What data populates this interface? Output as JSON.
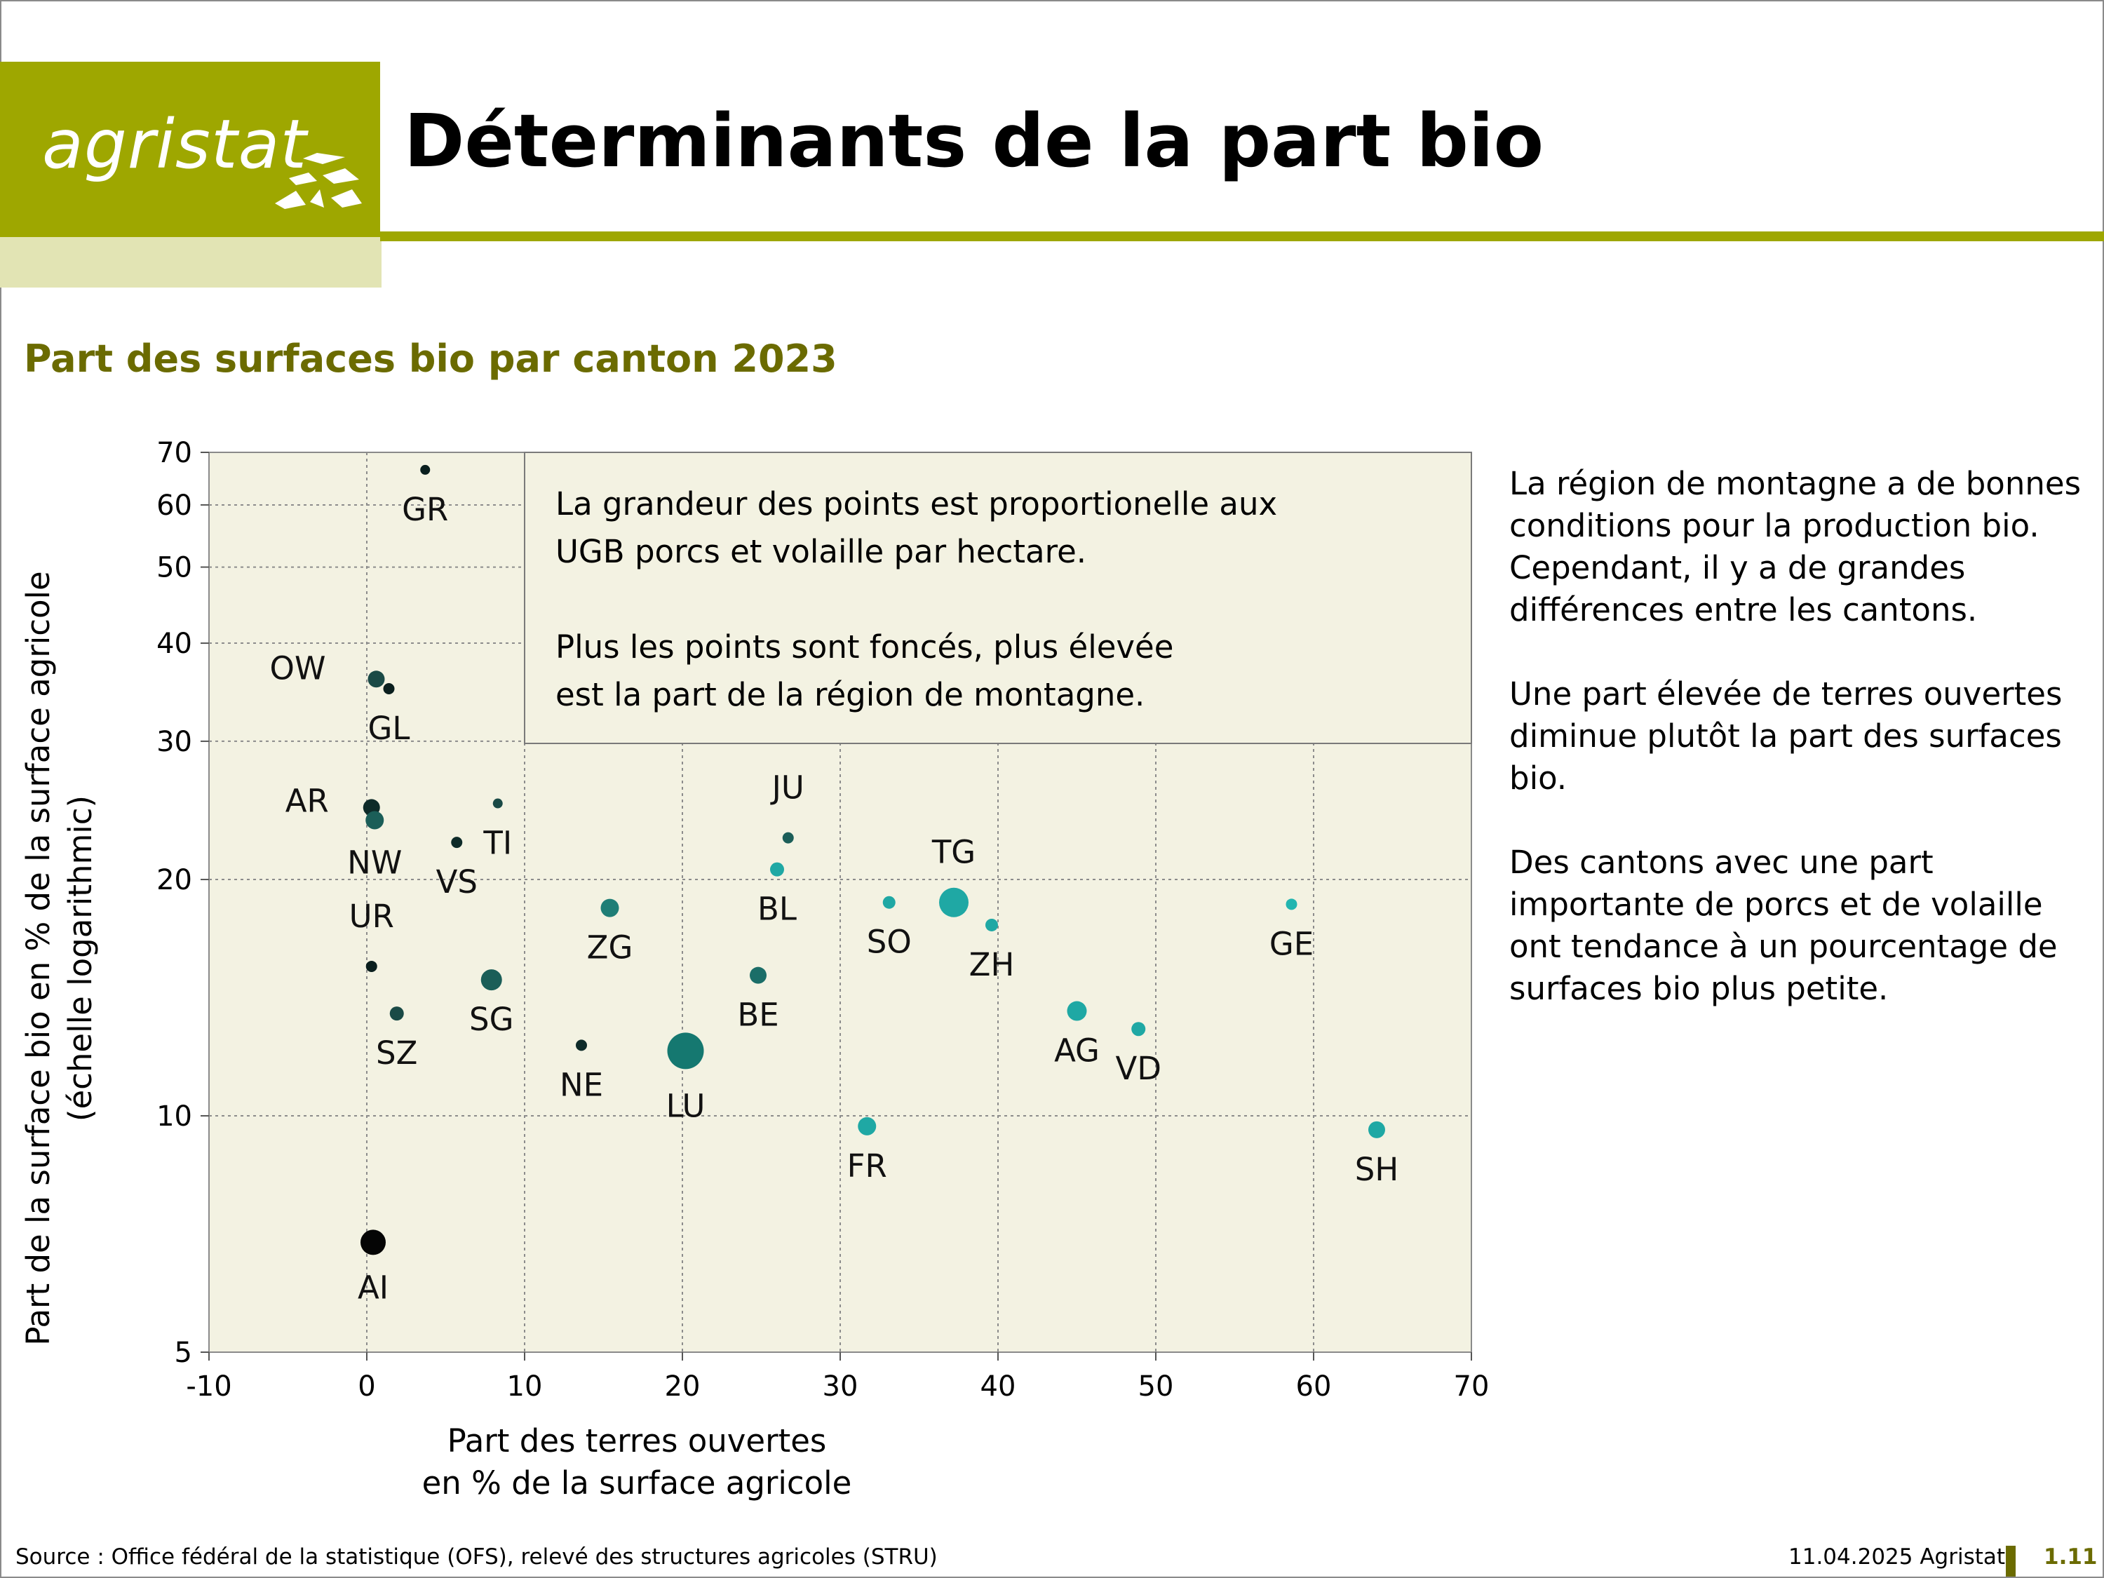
{
  "header": {
    "logo_text": "agristat",
    "title": "Déterminants de la part bio"
  },
  "chart_title": "Part des surfaces bio par canton 2023",
  "colors": {
    "brand": "#9ea700",
    "brand_light": "#e2e4b4",
    "plot_bg": "#f3f2e2",
    "subtitle": "#6b6b00"
  },
  "legend_note": {
    "lines": [
      "La grandeur des points est proportionelle aux",
      "UGB porcs et volaille par hectare.",
      "",
      "Plus les points sont foncés, plus élevée",
      "est la part de la région de montagne."
    ]
  },
  "side_text": {
    "p1": "La région de montagne a de bonnes conditions pour la production bio. Cependant, il y a de grandes différences entre les cantons.",
    "p2": "Une part élevée de terres ouvertes diminue plutôt la part des surfaces bio.",
    "p3": "Des cantons avec une part importante de porcs et de volaille ont tendance à un pourcentage de surfaces bio plus petite."
  },
  "footer": {
    "source": "Source : Office fédéral de la statistique (OFS), relevé des structures agricoles (STRU)",
    "date": "11.04.2025 Agristat",
    "page": "1.11"
  },
  "chart_data": {
    "type": "scatter",
    "xlabel": [
      "Part des terres ouvertes",
      "en % de la surface agricole"
    ],
    "ylabel": [
      "Part de la surface bio en % de la surface agricole",
      "(échelle logarithmic)"
    ],
    "xlim": [
      -10,
      70
    ],
    "ylim": [
      5,
      70
    ],
    "yscale": "log",
    "xticks": [
      -10,
      0,
      10,
      20,
      30,
      40,
      50,
      60,
      70
    ],
    "yticks": [
      5,
      10,
      20,
      30,
      40,
      50,
      60,
      70
    ],
    "grid": true,
    "points": [
      {
        "label": "GR",
        "x": 3.7,
        "y": 66.5,
        "size": 7,
        "color": "#0a1f1e"
      },
      {
        "label": "OW",
        "x": 0.6,
        "y": 36.0,
        "size": 12,
        "color": "#1a4a46"
      },
      {
        "label": "GL",
        "x": 1.4,
        "y": 35.0,
        "size": 8,
        "color": "#0a1f1e"
      },
      {
        "label": "AR",
        "x": 0.3,
        "y": 24.7,
        "size": 12,
        "color": "#0e2b29"
      },
      {
        "label": "NW",
        "x": 0.5,
        "y": 23.8,
        "size": 13,
        "color": "#1b5e58"
      },
      {
        "label": "TI",
        "x": 8.3,
        "y": 25.0,
        "size": 7,
        "color": "#1a4a46"
      },
      {
        "label": "VS",
        "x": 5.7,
        "y": 22.3,
        "size": 8,
        "color": "#0e2b29"
      },
      {
        "label": "UR",
        "x": 0.3,
        "y": 15.5,
        "size": 8,
        "color": "#0a1f1e"
      },
      {
        "label": "SZ",
        "x": 1.9,
        "y": 13.5,
        "size": 10,
        "color": "#1a4a46"
      },
      {
        "label": "SG",
        "x": 7.9,
        "y": 14.9,
        "size": 15,
        "color": "#1b5e58"
      },
      {
        "label": "ZG",
        "x": 15.4,
        "y": 18.4,
        "size": 13,
        "color": "#1f7e76"
      },
      {
        "label": "NE",
        "x": 13.6,
        "y": 12.3,
        "size": 8,
        "color": "#0e2b29"
      },
      {
        "label": "LU",
        "x": 20.2,
        "y": 12.1,
        "size": 26,
        "color": "#157870"
      },
      {
        "label": "JU",
        "x": 26.7,
        "y": 22.6,
        "size": 8,
        "color": "#1b5e58"
      },
      {
        "label": "BL",
        "x": 26.0,
        "y": 20.6,
        "size": 10,
        "color": "#1fa8a4"
      },
      {
        "label": "BE",
        "x": 24.8,
        "y": 15.1,
        "size": 12,
        "color": "#1b6e68"
      },
      {
        "label": "FR",
        "x": 31.7,
        "y": 9.7,
        "size": 13,
        "color": "#1fa8a4"
      },
      {
        "label": "SO",
        "x": 33.1,
        "y": 18.7,
        "size": 9,
        "color": "#1fa8a4"
      },
      {
        "label": "TG",
        "x": 37.2,
        "y": 18.7,
        "size": 21,
        "color": "#1fa8a4"
      },
      {
        "label": "ZH",
        "x": 39.6,
        "y": 17.5,
        "size": 9,
        "color": "#1fa8a4"
      },
      {
        "label": "AG",
        "x": 45.0,
        "y": 13.6,
        "size": 14,
        "color": "#1fa8a4"
      },
      {
        "label": "VD",
        "x": 48.9,
        "y": 12.9,
        "size": 10,
        "color": "#1fa8a4"
      },
      {
        "label": "GE",
        "x": 58.6,
        "y": 18.6,
        "size": 8,
        "color": "#22b5b0"
      },
      {
        "label": "SH",
        "x": 64.0,
        "y": 9.6,
        "size": 12,
        "color": "#1fa8a4"
      },
      {
        "label": "AI",
        "x": 0.4,
        "y": 6.9,
        "size": 18,
        "color": "#050505"
      }
    ]
  }
}
